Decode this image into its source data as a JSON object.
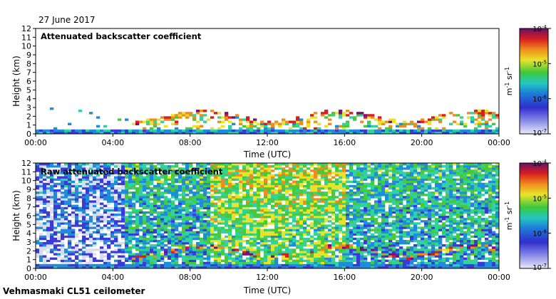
{
  "date_label": "27 June 2017",
  "instrument_label": "Vehmasmaki CL51 ceilometer",
  "colors": {
    "colormap": [
      "#d8dcf0",
      "#3a3ad8",
      "#1e8cd8",
      "#2fd3a0",
      "#49c83c",
      "#e8e22a",
      "#f08c1e",
      "#d81e1e",
      "#7a0f7a"
    ],
    "axis": "#000000",
    "background": "#ffffff"
  },
  "chart_data": [
    {
      "type": "heatmap",
      "title": "Attenuated backscatter coefficient",
      "xlabel": "Time (UTC)",
      "ylabel": "Height (km)",
      "x_ticks": [
        "00:00",
        "04:00",
        "08:00",
        "12:00",
        "16:00",
        "20:00",
        "00:00"
      ],
      "x_hours": [
        0,
        4,
        8,
        12,
        16,
        20,
        24
      ],
      "y_ticks": [
        0,
        1,
        2,
        3,
        4,
        5,
        6,
        7,
        8,
        9,
        10,
        11,
        12
      ],
      "ylim": [
        0,
        12
      ],
      "xlim_hours": [
        0,
        24
      ],
      "colorbar": {
        "label": "m-1 sr-1",
        "scale": "log",
        "range": [
          1e-07,
          0.0001
        ],
        "ticks": [
          "10-4",
          "10-5",
          "10-6",
          "10-7"
        ]
      }
    },
    {
      "type": "heatmap",
      "title": "Raw attenuated backscatter coefficient",
      "xlabel": "Time (UTC)",
      "ylabel": "Height (km)",
      "x_ticks": [
        "00:00",
        "04:00",
        "08:00",
        "12:00",
        "16:00",
        "20:00",
        "00:00"
      ],
      "x_hours": [
        0,
        4,
        8,
        12,
        16,
        20,
        24
      ],
      "y_ticks": [
        0,
        1,
        2,
        3,
        4,
        5,
        6,
        7,
        8,
        9,
        10,
        11,
        12
      ],
      "ylim": [
        0,
        12
      ],
      "xlim_hours": [
        0,
        24
      ],
      "colorbar": {
        "label": "m-1 sr-1",
        "scale": "log",
        "range": [
          1e-07,
          0.0001
        ],
        "ticks": [
          "10-4",
          "10-5",
          "10-6",
          "10-7"
        ]
      }
    }
  ]
}
